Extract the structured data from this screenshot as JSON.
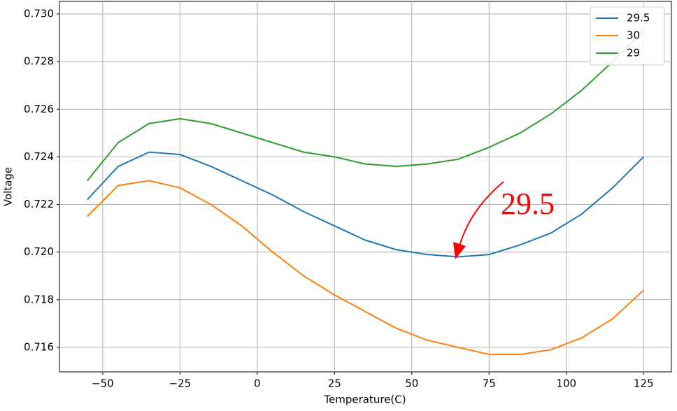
{
  "chart_data": {
    "type": "line",
    "x_label": "Temperature(C)",
    "y_label": "Voltage",
    "x": [
      -55,
      -45,
      -35,
      -25,
      -15,
      -5,
      5,
      15,
      25,
      35,
      45,
      55,
      65,
      75,
      85,
      95,
      105,
      115,
      125
    ],
    "series": [
      {
        "name": "29.5",
        "color": "#1f77b4",
        "values": [
          0.7222,
          0.7236,
          0.7242,
          0.7241,
          0.7236,
          0.723,
          0.7224,
          0.7217,
          0.7211,
          0.7205,
          0.7201,
          0.7199,
          0.7198,
          0.7199,
          0.7203,
          0.7208,
          0.7216,
          0.7227,
          0.724
        ]
      },
      {
        "name": "30",
        "color": "#ff7f0e",
        "values": [
          0.7215,
          0.7228,
          0.723,
          0.7227,
          0.722,
          0.7211,
          0.72,
          0.719,
          0.7182,
          0.7175,
          0.7168,
          0.7163,
          0.716,
          0.7157,
          0.7157,
          0.7159,
          0.7164,
          0.7172,
          0.7184
        ]
      },
      {
        "name": "29",
        "color": "#2ca02c",
        "values": [
          0.723,
          0.7246,
          0.7254,
          0.7256,
          0.7254,
          0.725,
          0.7246,
          0.7242,
          0.724,
          0.7237,
          0.7236,
          0.7237,
          0.7239,
          0.7244,
          0.725,
          0.7258,
          0.7268,
          0.728,
          0.7293
        ]
      }
    ],
    "xlim": [
      -64,
      134
    ],
    "xticks": [
      {
        "value": -50,
        "label": "−50"
      },
      {
        "value": -25,
        "label": "−25"
      },
      0,
      25,
      50,
      75,
      100,
      125
    ],
    "ylim": [
      0.71497,
      0.73053
    ],
    "yticks": [
      0.716,
      0.718,
      {
        "value": 0.72,
        "label": "0.720"
      },
      0.722,
      0.724,
      0.726,
      0.728,
      {
        "value": 0.73,
        "label": "0.730"
      }
    ],
    "grid": true,
    "legend": "upper right",
    "annotations": [
      {
        "text": "29.5",
        "color": "#ff0000"
      }
    ]
  }
}
